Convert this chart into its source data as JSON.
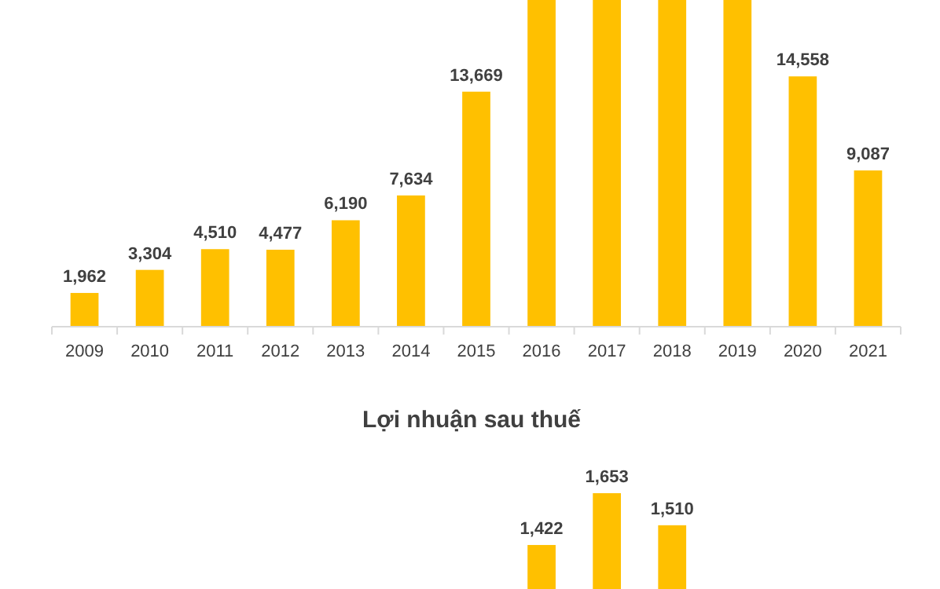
{
  "chart_data": [
    {
      "type": "bar",
      "categories": [
        "2009",
        "2010",
        "2011",
        "2012",
        "2013",
        "2014",
        "2015",
        "2016",
        "2017",
        "2018",
        "2019",
        "2020",
        "2021"
      ],
      "values": [
        1962,
        3304,
        4510,
        4477,
        6190,
        7634,
        13669,
        19000,
        19000,
        19000,
        19000,
        14558,
        9087
      ],
      "value_labels": [
        "1,962",
        "3,304",
        "4,510",
        "4,477",
        "6,190",
        "7,634",
        "13,669",
        null,
        null,
        null,
        null,
        "14,558",
        "9,087"
      ],
      "color": "#ffc000"
    },
    {
      "type": "bar",
      "title": "Lợi nhuận sau thuế",
      "categories": [
        null,
        null,
        null,
        null,
        null,
        null,
        null,
        null,
        null,
        null,
        null,
        null,
        null
      ],
      "values": [
        null,
        null,
        null,
        null,
        null,
        null,
        null,
        1422,
        1653,
        1510,
        null,
        null,
        null
      ],
      "value_labels": [
        null,
        null,
        null,
        null,
        null,
        null,
        null,
        "1,422",
        "1,653",
        "1,510",
        null,
        null,
        null
      ],
      "color": "#ffc000"
    }
  ]
}
